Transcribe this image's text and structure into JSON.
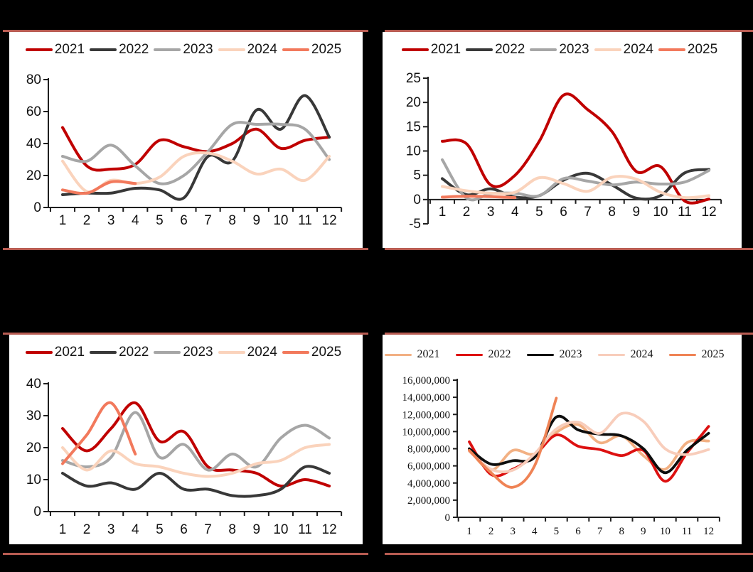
{
  "page": {
    "background": "#000000",
    "rule_color": "#b85c52",
    "panel_background": "#ffffff"
  },
  "chart_data": [
    {
      "id": "top-left",
      "type": "line",
      "smooth": true,
      "legend_position": "top",
      "grid": false,
      "x": [
        1,
        2,
        3,
        4,
        5,
        6,
        7,
        8,
        9,
        10,
        11,
        12
      ],
      "x_labels": [
        "1",
        "2",
        "3",
        "4",
        "5",
        "6",
        "7",
        "8",
        "9",
        "10",
        "11",
        "12"
      ],
      "ylim": [
        0,
        80
      ],
      "y_ticks": [
        0,
        20,
        40,
        60,
        80
      ],
      "y_tick_labels": [
        "0",
        "20",
        "40",
        "60",
        "80"
      ],
      "series": [
        {
          "name": "2021",
          "color": "#c00000",
          "values": [
            50,
            26,
            24,
            27,
            42,
            38,
            35,
            40,
            49,
            37,
            42,
            44
          ]
        },
        {
          "name": "2022",
          "color": "#383838",
          "values": [
            8,
            9,
            9,
            12,
            11,
            6,
            32,
            29,
            61,
            49,
            70,
            44
          ]
        },
        {
          "name": "2023",
          "color": "#a6a6a6",
          "values": [
            32,
            29,
            39,
            26,
            15,
            20,
            35,
            52,
            52,
            52,
            49,
            30
          ]
        },
        {
          "name": "2024",
          "color": "#fad3bc",
          "values": [
            29,
            10,
            17,
            15,
            19,
            32,
            34,
            29,
            21,
            24,
            17,
            32
          ]
        },
        {
          "name": "2025",
          "color": "#f2795c",
          "values": [
            11,
            9,
            16,
            15,
            null,
            null,
            null,
            null,
            null,
            null,
            null,
            null
          ]
        }
      ]
    },
    {
      "id": "top-right",
      "type": "line",
      "smooth": true,
      "legend_position": "top",
      "grid": false,
      "x": [
        1,
        2,
        3,
        4,
        5,
        6,
        7,
        8,
        9,
        10,
        11,
        12
      ],
      "x_labels": [
        "1",
        "2",
        "3",
        "4",
        "5",
        "6",
        "7",
        "8",
        "9",
        "10",
        "11",
        "12"
      ],
      "ylim": [
        -5,
        25
      ],
      "y_ticks": [
        -5,
        0,
        5,
        10,
        15,
        20,
        25
      ],
      "y_tick_labels": [
        "-5",
        "0",
        "5",
        "10",
        "15",
        "20",
        "25"
      ],
      "series": [
        {
          "name": "2021",
          "color": "#c00000",
          "values": [
            12,
            11.5,
            3,
            5,
            12,
            21.5,
            18.5,
            14,
            5.8,
            6.8,
            -0.3,
            0.1
          ]
        },
        {
          "name": "2022",
          "color": "#383838",
          "values": [
            4.3,
            1,
            2.2,
            0.5,
            0.8,
            4,
            5.4,
            3,
            0.3,
            0.8,
            5.5,
            6.2
          ]
        },
        {
          "name": "2023",
          "color": "#a6a6a6",
          "values": [
            8.2,
            0.3,
            1.2,
            1.3,
            0.8,
            4.3,
            3.8,
            3,
            3.6,
            3.2,
            3.6,
            6
          ]
        },
        {
          "name": "2024",
          "color": "#fad3bc",
          "values": [
            2.7,
            1.8,
            1.3,
            1.5,
            4.5,
            3.3,
            1.7,
            4.6,
            4.2,
            1.5,
            0.4,
            0.8
          ]
        },
        {
          "name": "2025",
          "color": "#f2795c",
          "values": [
            0.5,
            0.7,
            0.6,
            0.4,
            null,
            null,
            null,
            null,
            null,
            null,
            null,
            null
          ]
        }
      ]
    },
    {
      "id": "bottom-left",
      "type": "line",
      "smooth": true,
      "legend_position": "top",
      "grid": false,
      "x": [
        1,
        2,
        3,
        4,
        5,
        6,
        7,
        8,
        9,
        10,
        11,
        12
      ],
      "x_labels": [
        "1",
        "2",
        "3",
        "4",
        "5",
        "6",
        "7",
        "8",
        "9",
        "10",
        "11",
        "12"
      ],
      "ylim": [
        0,
        40
      ],
      "y_ticks": [
        0,
        10,
        20,
        30,
        40
      ],
      "y_tick_labels": [
        "0",
        "10",
        "20",
        "30",
        "40"
      ],
      "series": [
        {
          "name": "2021",
          "color": "#c00000",
          "values": [
            26,
            19,
            26,
            34,
            22,
            25,
            14,
            13,
            12,
            8,
            10,
            8
          ]
        },
        {
          "name": "2022",
          "color": "#383838",
          "values": [
            12,
            8,
            9,
            7,
            12,
            7,
            7,
            5,
            5,
            7,
            14,
            12
          ]
        },
        {
          "name": "2023",
          "color": "#a6a6a6",
          "values": [
            16,
            14,
            17,
            31,
            17,
            21,
            13,
            18,
            14,
            23,
            27,
            23
          ]
        },
        {
          "name": "2024",
          "color": "#fad3bc",
          "values": [
            20,
            13,
            19,
            15,
            14,
            12,
            11,
            12,
            15,
            16,
            20,
            21
          ]
        },
        {
          "name": "2025",
          "color": "#f2795c",
          "values": [
            15,
            24,
            34,
            18,
            null,
            null,
            null,
            null,
            null,
            null,
            null,
            null
          ]
        }
      ]
    },
    {
      "id": "bottom-right",
      "type": "line",
      "smooth": true,
      "legend_position": "top",
      "grid": false,
      "x": [
        1,
        2,
        3,
        4,
        5,
        6,
        7,
        8,
        9,
        10,
        11,
        12
      ],
      "x_labels": [
        "1",
        "2",
        "3",
        "4",
        "5",
        "6",
        "7",
        "8",
        "9",
        "10",
        "11",
        "12"
      ],
      "ylim": [
        0,
        16000000
      ],
      "y_ticks": [
        0,
        2000000,
        4000000,
        6000000,
        8000000,
        10000000,
        12000000,
        14000000,
        16000000
      ],
      "y_tick_labels": [
        "0",
        "2,000,000",
        "4,000,000",
        "6,000,000",
        "8,000,000",
        "10,000,000",
        "12,000,000",
        "14,000,000",
        "16,000,000"
      ],
      "series": [
        {
          "name": "2021",
          "color": "#f2b083",
          "values": [
            7900000,
            5500000,
            7800000,
            7400000,
            9900000,
            10800000,
            8700000,
            9500000,
            7200000,
            5600000,
            8700000,
            8900000
          ]
        },
        {
          "name": "2022",
          "color": "#dd1111",
          "values": [
            8800000,
            5000000,
            5600000,
            7200000,
            9600000,
            8300000,
            7900000,
            7200000,
            7800000,
            4200000,
            7500000,
            10600000
          ]
        },
        {
          "name": "2023",
          "color": "#0d0d0d",
          "values": [
            8000000,
            6200000,
            6600000,
            7000000,
            11700000,
            10200000,
            9700000,
            9500000,
            8000000,
            5200000,
            7800000,
            9800000
          ]
        },
        {
          "name": "2024",
          "color": "#f8cdbb",
          "values": [
            7700000,
            5600000,
            5500000,
            7400000,
            10300000,
            11100000,
            9800000,
            12100000,
            11200000,
            8000000,
            7300000,
            7900000
          ]
        },
        {
          "name": "2025",
          "color": "#ef8355",
          "values": [
            7800000,
            5200000,
            3500000,
            6000000,
            13900000,
            null,
            null,
            null,
            null,
            null,
            null,
            null
          ]
        }
      ]
    }
  ]
}
